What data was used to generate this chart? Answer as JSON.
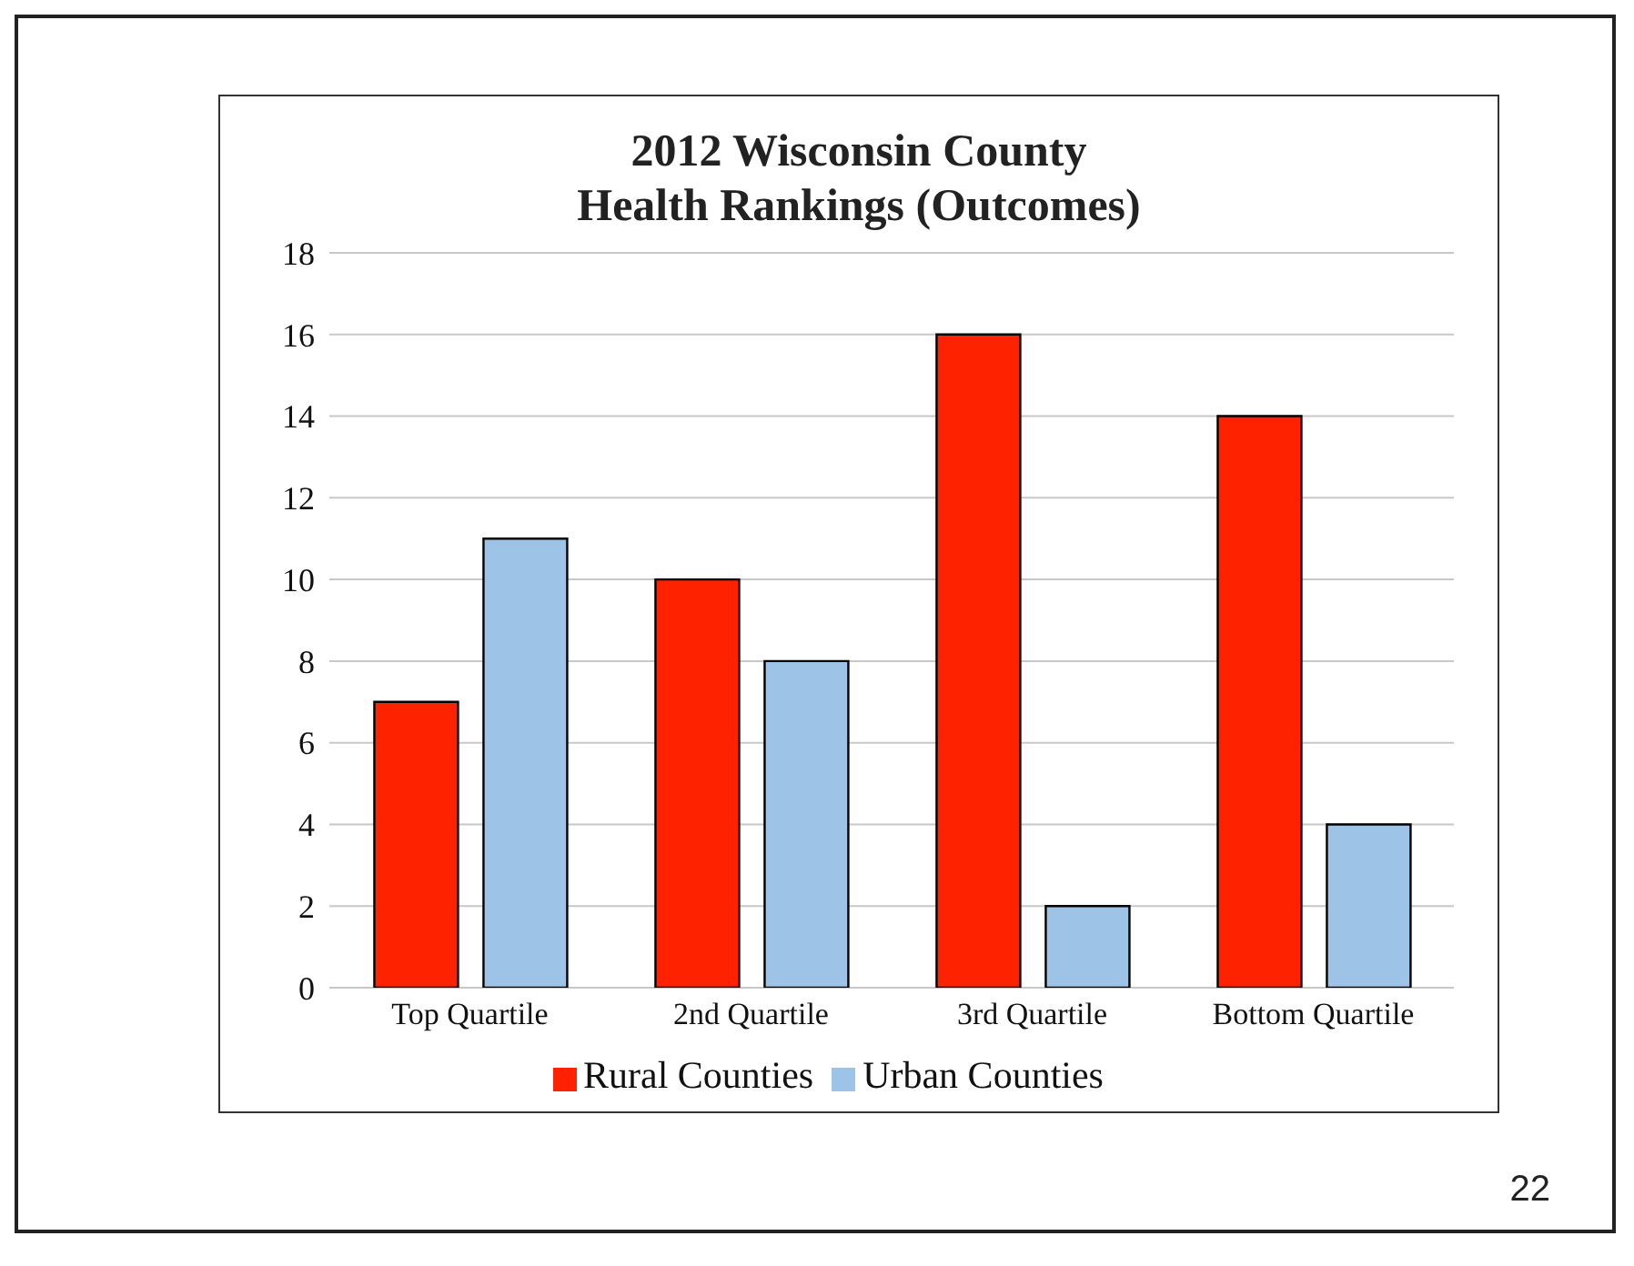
{
  "chart_data": {
    "type": "bar",
    "title": "2012 Wisconsin County\nHealth Rankings (Outcomes)",
    "categories": [
      "Top Quartile",
      "2nd Quartile",
      "3rd Quartile",
      "Bottom Quartile"
    ],
    "series": [
      {
        "name": "Rural Counties",
        "color": "#ff2200",
        "values": [
          7,
          10,
          16,
          14
        ]
      },
      {
        "name": "Urban Counties",
        "color": "#9dc3e6",
        "values": [
          11,
          8,
          2,
          4
        ]
      }
    ],
    "ylim": [
      0,
      18
    ],
    "yticks": [
      0,
      2,
      4,
      6,
      8,
      10,
      12,
      14,
      16,
      18
    ],
    "grid": "y",
    "legend": "bottom",
    "annotations": [
      "22"
    ]
  }
}
